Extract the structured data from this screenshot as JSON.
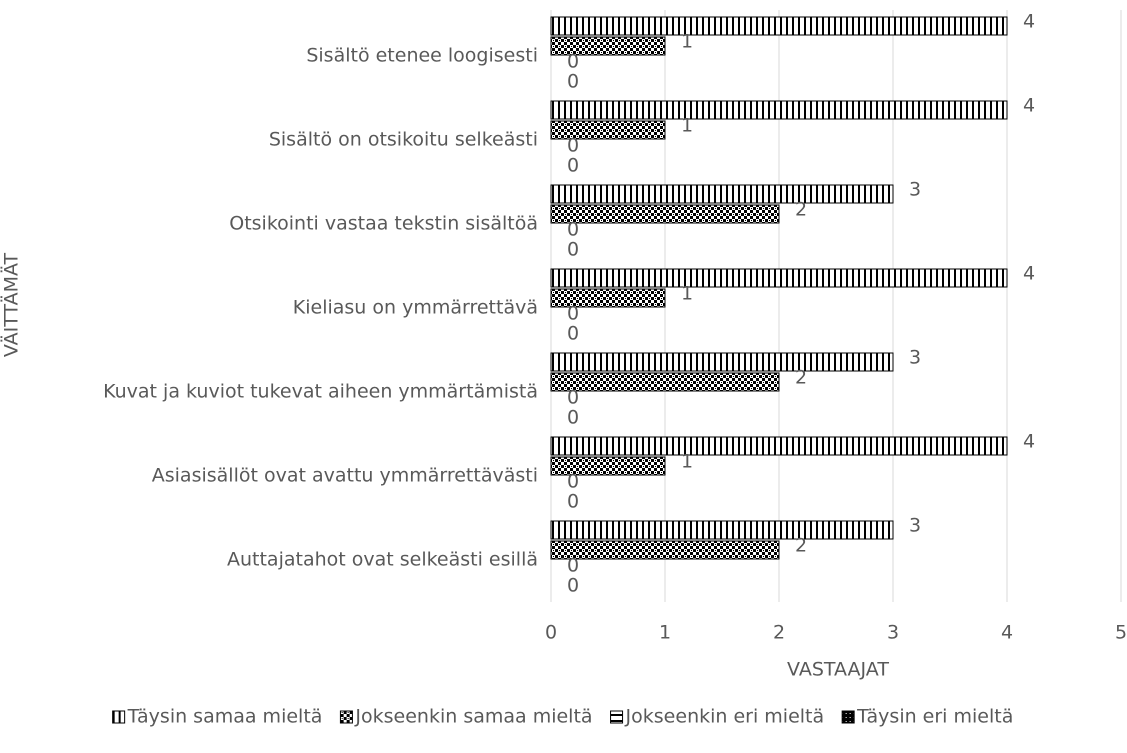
{
  "chart_data": {
    "type": "barh",
    "categories": [
      "Sisältö etenee loogisesti",
      "Sisältö on otsikoitu selkeästi",
      "Otsikointi vastaa tekstin sisältöä",
      "Kieliasu on ymmärrettävä",
      "Kuvat ja kuviot tukevat aiheen ymmärtämistä",
      "Asiasisällöt ovat avattu ymmärrettävästi",
      "Auttajatahot ovat selkeästi esillä"
    ],
    "series": [
      {
        "name": "Täysin samaa mieltä",
        "color": "#000000",
        "pattern": "vertical",
        "values": [
          4,
          4,
          3,
          4,
          3,
          4,
          3
        ]
      },
      {
        "name": "Jokseenkin samaa mieltä",
        "color": "#000000",
        "pattern": "checker",
        "values": [
          1,
          1,
          2,
          1,
          2,
          1,
          2
        ]
      },
      {
        "name": "Jokseenkin eri mieltä",
        "color": "#000000",
        "pattern": "horizontal",
        "values": [
          0,
          0,
          0,
          0,
          0,
          0,
          0
        ]
      },
      {
        "name": "Täysin eri mieltä",
        "color": "#000000",
        "pattern": "dark",
        "values": [
          0,
          0,
          0,
          0,
          0,
          0,
          0
        ]
      }
    ],
    "xlabel": "VASTAAJAT",
    "ylabel": "VÄITTÄMÄT",
    "xlim": [
      0,
      5
    ],
    "xticks": [
      0,
      1,
      2,
      3,
      4,
      5
    ],
    "grid": true,
    "legend": "bottom"
  }
}
